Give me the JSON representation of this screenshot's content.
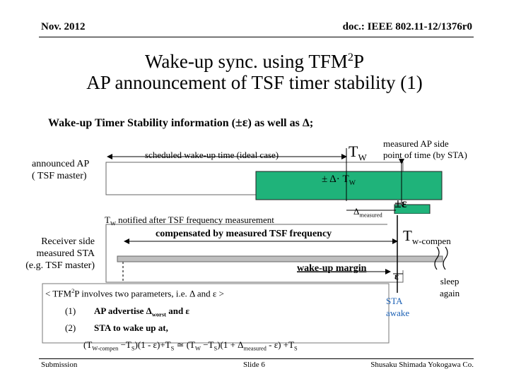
{
  "header": {
    "date": "Nov. 2012",
    "doc": "doc.: IEEE 802.11-12/1376r0"
  },
  "title": {
    "line1_pre": "Wake-up sync. using TFM",
    "line1_sup": "2",
    "line1_post": "P",
    "line2": "AP announcement of TSF timer stability (1)"
  },
  "subtitle": {
    "pre": "Wake-up Timer Stability information (",
    "pm_eps": "±ε",
    "mid": ") as well as ",
    "delta": "Δ",
    "post": ";"
  },
  "diagram": {
    "announced_ap_line1": "announced AP",
    "announced_ap_line2": "( TSF master)",
    "scheduled": "scheduled wake-up time (ideal case)",
    "tw_main": "T",
    "tw_sub": "W",
    "measured_ap_line1": "measured AP side",
    "measured_ap_line2": "point of time (by STA)",
    "pm_delta_tw_pre": "±  Δ· T",
    "pm_delta_tw_sub": "W",
    "pm_eps_right": "±ε",
    "delta_measured_sym": "Δ",
    "delta_measured_sub": "measured",
    "tw_notified_main": "T",
    "tw_notified_sub": "W",
    "tw_notified_rest": " notified after TSF frequency measurement",
    "compensated": "compensated by measured TSF frequency",
    "tw_compen_main": "T",
    "tw_compen_sub": "w-compen",
    "receiver_line1": "Receiver side",
    "receiver_line2": "measured STA",
    "receiver_line3": "(e.g. TSF master)",
    "wakeup_margin": "wake-up margin",
    "eps_small": "ε",
    "sleep_line1": "sleep",
    "sleep_line2": "again",
    "sta_line1": "STA",
    "sta_line2": "awake"
  },
  "notes": {
    "line1_pre": "< TFM",
    "line1_sup": "2",
    "line1_post": "P involves two parameters, i.e. Δ and ε >",
    "item1_num": "(1)",
    "item1_text_a": "AP advertise  Δ",
    "item1_text_sub": "worst",
    "item1_text_b": "  and  ε",
    "item2_num": "(2)",
    "item2_text": "STA to wake up at,",
    "formula_a": "(T",
    "formula_sub1": "W-compen",
    "formula_b": " −T",
    "formula_sub2": "S",
    "formula_c": ")(1 - ε)+T",
    "formula_sub3": "S",
    "formula_d": " ≃ (T",
    "formula_sub4": "W",
    "formula_e": " −T",
    "formula_sub5": "S",
    "formula_f": ")(1 + Δ",
    "formula_sub6": "measured",
    "formula_g": " - ε) +T",
    "formula_sub7": "S"
  },
  "footer": {
    "left": "Submission",
    "center": "Slide 6",
    "right": "Shusaku Shimada Yokogawa Co."
  },
  "colors": {
    "green_bar": "#1fb37a",
    "blue_text": "#1a5fb4"
  }
}
